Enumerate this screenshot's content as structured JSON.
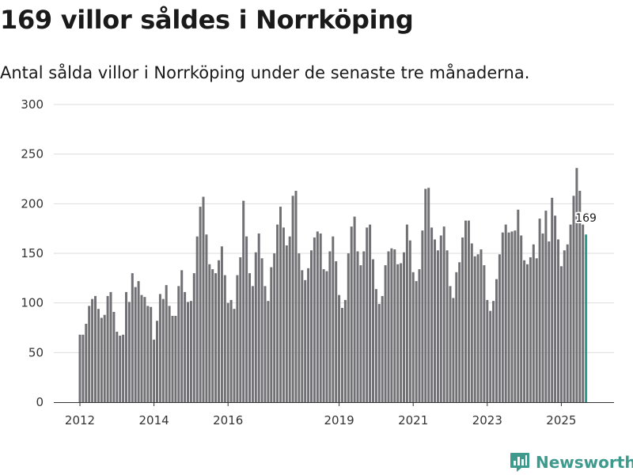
{
  "header": {
    "title": "169 villor såldes i Norrköping",
    "subtitle": "Antal sålda villor i Norrköping under de senaste tre månaderna."
  },
  "brand": {
    "name": "Newsworthy",
    "icon": "newsworthy-logo-icon"
  },
  "colors": {
    "bar": "#717075",
    "highlight": "#2b9a8f",
    "grid": "#dddddd",
    "brand": "#3f9a8e"
  },
  "chart_data": {
    "type": "bar",
    "title": "169 villor såldes i Norrköping",
    "subtitle": "Antal sålda villor i Norrköping under de senaste tre månaderna.",
    "xlabel": "",
    "ylabel": "",
    "ylim": [
      0,
      300
    ],
    "yticks": [
      0,
      50,
      100,
      150,
      200,
      250,
      300
    ],
    "grid": true,
    "x_tick_labels": [
      "2012",
      "2014",
      "2016",
      "2019",
      "2021",
      "2023",
      "2025"
    ],
    "start": "2012-01",
    "frequency": "monthly",
    "highlight": {
      "label": "169",
      "value": 169,
      "index": 164
    },
    "values": [
      68,
      68,
      79,
      97,
      104,
      107,
      94,
      85,
      88,
      107,
      111,
      91,
      71,
      67,
      68,
      111,
      101,
      130,
      116,
      122,
      108,
      106,
      97,
      96,
      63,
      82,
      109,
      104,
      118,
      97,
      87,
      87,
      117,
      133,
      111,
      101,
      102,
      130,
      167,
      197,
      207,
      169,
      139,
      134,
      130,
      143,
      157,
      128,
      100,
      103,
      94,
      128,
      146,
      203,
      167,
      130,
      117,
      151,
      170,
      145,
      117,
      102,
      136,
      150,
      179,
      197,
      176,
      158,
      167,
      208,
      213,
      150,
      133,
      123,
      135,
      153,
      166,
      172,
      170,
      134,
      132,
      152,
      167,
      142,
      108,
      95,
      103,
      150,
      177,
      187,
      152,
      138,
      152,
      176,
      179,
      144,
      114,
      99,
      107,
      138,
      152,
      155,
      154,
      139,
      140,
      151,
      179,
      163,
      131,
      122,
      134,
      173,
      215,
      216,
      176,
      164,
      153,
      168,
      177,
      153,
      117,
      105,
      131,
      141,
      166,
      183,
      183,
      160,
      147,
      149,
      154,
      138,
      103,
      92,
      102,
      124,
      149,
      171,
      179,
      171,
      172,
      173,
      194,
      168,
      143,
      139,
      146,
      159,
      145,
      185,
      170,
      193,
      162,
      206,
      188,
      164,
      137,
      153,
      159,
      179,
      208,
      236,
      213,
      179,
      169
    ]
  }
}
